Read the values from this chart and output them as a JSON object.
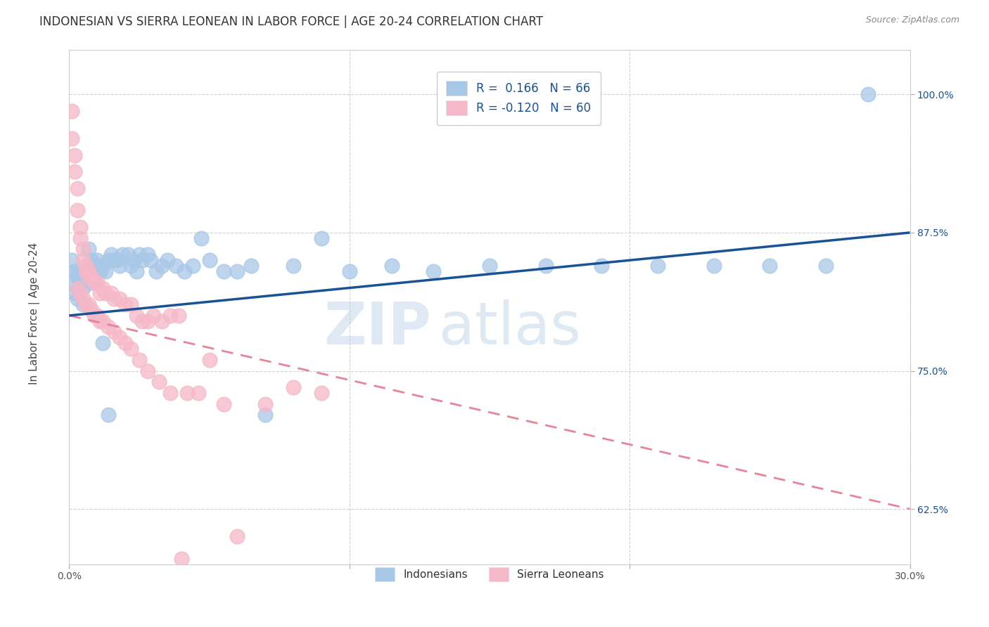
{
  "title": "INDONESIAN VS SIERRA LEONEAN IN LABOR FORCE | AGE 20-24 CORRELATION CHART",
  "source": "Source: ZipAtlas.com",
  "ylabel": "In Labor Force | Age 20-24",
  "xlim": [
    0.0,
    0.3
  ],
  "ylim": [
    0.575,
    1.04
  ],
  "xticks": [
    0.0,
    0.1,
    0.2,
    0.3
  ],
  "xticklabels": [
    "0.0%",
    "",
    "",
    "30.0%"
  ],
  "yticks": [
    0.625,
    0.75,
    0.875,
    1.0
  ],
  "yticklabels": [
    "62.5%",
    "75.0%",
    "87.5%",
    "100.0%"
  ],
  "grid_color": "#cccccc",
  "background_color": "#ffffff",
  "blue_color": "#a8c8e8",
  "pink_color": "#f5b8c8",
  "trend_blue": "#1a5296",
  "trend_pink": "#e8849a",
  "R_blue": 0.166,
  "N_blue": 66,
  "R_pink": -0.12,
  "N_pink": 60,
  "title_fontsize": 12,
  "tick_fontsize": 10,
  "blue_trend_x0": 0.0,
  "blue_trend_y0": 0.8,
  "blue_trend_x1": 0.3,
  "blue_trend_y1": 0.875,
  "pink_trend_x0": 0.0,
  "pink_trend_y0": 0.8,
  "pink_trend_x1": 0.3,
  "pink_trend_y1": 0.625,
  "blue_pts_x": [
    0.001,
    0.001,
    0.002,
    0.002,
    0.003,
    0.003,
    0.004,
    0.005,
    0.005,
    0.006,
    0.007,
    0.008,
    0.009,
    0.01,
    0.011,
    0.012,
    0.013,
    0.014,
    0.015,
    0.016,
    0.017,
    0.018,
    0.019,
    0.021,
    0.022,
    0.023,
    0.024,
    0.025,
    0.026,
    0.028,
    0.029,
    0.031,
    0.033,
    0.035,
    0.038,
    0.041,
    0.044,
    0.047,
    0.05,
    0.055,
    0.06,
    0.065,
    0.07,
    0.08,
    0.09,
    0.1,
    0.115,
    0.13,
    0.15,
    0.17,
    0.19,
    0.21,
    0.23,
    0.25,
    0.27,
    0.285,
    0.003,
    0.004,
    0.005,
    0.006,
    0.007,
    0.008,
    0.009,
    0.01,
    0.012,
    0.014
  ],
  "blue_pts_y": [
    0.83,
    0.85,
    0.82,
    0.84,
    0.815,
    0.835,
    0.835,
    0.84,
    0.825,
    0.84,
    0.84,
    0.85,
    0.845,
    0.85,
    0.84,
    0.845,
    0.84,
    0.85,
    0.855,
    0.85,
    0.85,
    0.845,
    0.855,
    0.855,
    0.845,
    0.85,
    0.84,
    0.855,
    0.85,
    0.855,
    0.85,
    0.84,
    0.845,
    0.85,
    0.845,
    0.84,
    0.845,
    0.87,
    0.85,
    0.84,
    0.84,
    0.845,
    0.71,
    0.845,
    0.87,
    0.84,
    0.845,
    0.84,
    0.845,
    0.845,
    0.845,
    0.845,
    0.845,
    0.845,
    0.845,
    1.0,
    0.84,
    0.84,
    0.81,
    0.835,
    0.86,
    0.83,
    0.835,
    0.84,
    0.775,
    0.71
  ],
  "pink_pts_x": [
    0.001,
    0.001,
    0.002,
    0.002,
    0.003,
    0.003,
    0.004,
    0.004,
    0.005,
    0.005,
    0.006,
    0.006,
    0.007,
    0.007,
    0.008,
    0.009,
    0.01,
    0.011,
    0.012,
    0.013,
    0.015,
    0.016,
    0.018,
    0.02,
    0.022,
    0.024,
    0.026,
    0.028,
    0.03,
    0.033,
    0.036,
    0.039,
    0.042,
    0.046,
    0.05,
    0.055,
    0.06,
    0.07,
    0.08,
    0.09,
    0.003,
    0.004,
    0.005,
    0.006,
    0.007,
    0.008,
    0.009,
    0.01,
    0.011,
    0.012,
    0.014,
    0.016,
    0.018,
    0.02,
    0.022,
    0.025,
    0.028,
    0.032,
    0.036,
    0.04
  ],
  "pink_pts_y": [
    0.985,
    0.96,
    0.945,
    0.93,
    0.915,
    0.895,
    0.88,
    0.87,
    0.86,
    0.85,
    0.845,
    0.84,
    0.84,
    0.835,
    0.835,
    0.83,
    0.83,
    0.82,
    0.825,
    0.82,
    0.82,
    0.815,
    0.815,
    0.81,
    0.81,
    0.8,
    0.795,
    0.795,
    0.8,
    0.795,
    0.8,
    0.8,
    0.73,
    0.73,
    0.76,
    0.72,
    0.6,
    0.72,
    0.735,
    0.73,
    0.825,
    0.82,
    0.815,
    0.81,
    0.81,
    0.805,
    0.8,
    0.8,
    0.795,
    0.795,
    0.79,
    0.785,
    0.78,
    0.775,
    0.77,
    0.76,
    0.75,
    0.74,
    0.73,
    0.58
  ]
}
